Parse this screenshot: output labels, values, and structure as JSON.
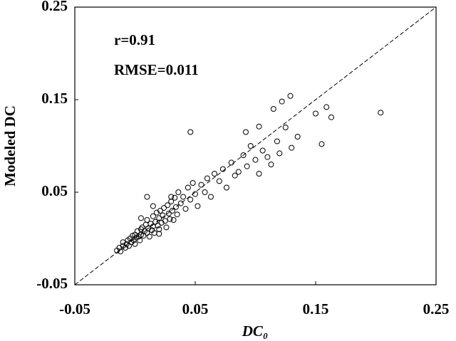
{
  "chart_data": {
    "type": "scatter",
    "x_label": "DC₀",
    "y_label": "Modeled DC",
    "annotations": [
      "r=0.91",
      "RMSE=0.011"
    ],
    "xlim": [
      -0.05,
      0.25
    ],
    "xticks": [
      -0.05,
      0.05,
      0.15,
      0.25
    ],
    "ylim": [
      -0.05,
      0.25
    ],
    "yticks": [
      -0.05,
      0.05,
      0.15,
      0.25
    ],
    "color": "#000000",
    "grid": false,
    "x": [
      -0.015,
      -0.013,
      -0.012,
      -0.01,
      -0.01,
      -0.008,
      -0.007,
      -0.006,
      -0.005,
      -0.004,
      -0.003,
      -0.002,
      -0.001,
      0,
      0,
      0.001,
      0.002,
      0.003,
      0.004,
      0.005,
      0.005,
      0.006,
      0.007,
      0.008,
      0.009,
      0.01,
      0.01,
      0.011,
      0.012,
      0.013,
      0.014,
      0.015,
      0.015,
      0.016,
      0.017,
      0.018,
      0.019,
      0.02,
      0.02,
      0.021,
      0.022,
      0.023,
      0.024,
      0.025,
      0.026,
      0.027,
      0.028,
      0.029,
      0.03,
      0.031,
      0.032,
      0.033,
      0.034,
      0.035,
      0.036,
      0.038,
      0.04,
      0.042,
      0.044,
      0.046,
      0.048,
      0.05,
      0.052,
      0.055,
      0.058,
      0.06,
      0.063,
      0.066,
      0.07,
      0.073,
      0.076,
      0.08,
      0.083,
      0.086,
      0.09,
      0.093,
      0.096,
      0.1,
      0.103,
      0.106,
      0.11,
      0.113,
      0.118,
      0.12,
      0.125,
      0.13,
      0.135,
      0.046,
      0.092,
      0.103,
      0.115,
      0.122,
      0.129,
      0.15,
      0.155,
      0.159,
      0.163,
      0.204,
      0.01,
      0.02,
      0.03,
      0.005,
      0.015
    ],
    "values": [
      -0.013,
      -0.01,
      -0.014,
      -0.008,
      -0.004,
      -0.01,
      -0.006,
      -0.002,
      -0.008,
      0,
      -0.004,
      0.003,
      -0.002,
      0.004,
      -0.006,
      0.001,
      0.008,
      0.002,
      -0.002,
      0.01,
      0.004,
      0.012,
      0.003,
      0.008,
      0.015,
      0.006,
      0.02,
      0.011,
      0.002,
      0.016,
      0.009,
      0.024,
      0.013,
      0.006,
      0.018,
      0.028,
      0.014,
      0.022,
      0.01,
      0.03,
      0.017,
      0.025,
      0.033,
      0.019,
      0.012,
      0.036,
      0.027,
      0.021,
      0.04,
      0.03,
      0.02,
      0.044,
      0.034,
      0.026,
      0.05,
      0.038,
      0.045,
      0.032,
      0.055,
      0.042,
      0.06,
      0.048,
      0.035,
      0.058,
      0.05,
      0.065,
      0.045,
      0.07,
      0.062,
      0.075,
      0.055,
      0.082,
      0.068,
      0.072,
      0.09,
      0.078,
      0.1,
      0.085,
      0.07,
      0.095,
      0.088,
      0.08,
      0.105,
      0.092,
      0.12,
      0.098,
      0.11,
      0.115,
      0.115,
      0.121,
      0.14,
      0.148,
      0.154,
      0.135,
      0.102,
      0.142,
      0.131,
      0.136,
      0.045,
      0.005,
      0.045,
      0.022,
      0.035
    ]
  }
}
